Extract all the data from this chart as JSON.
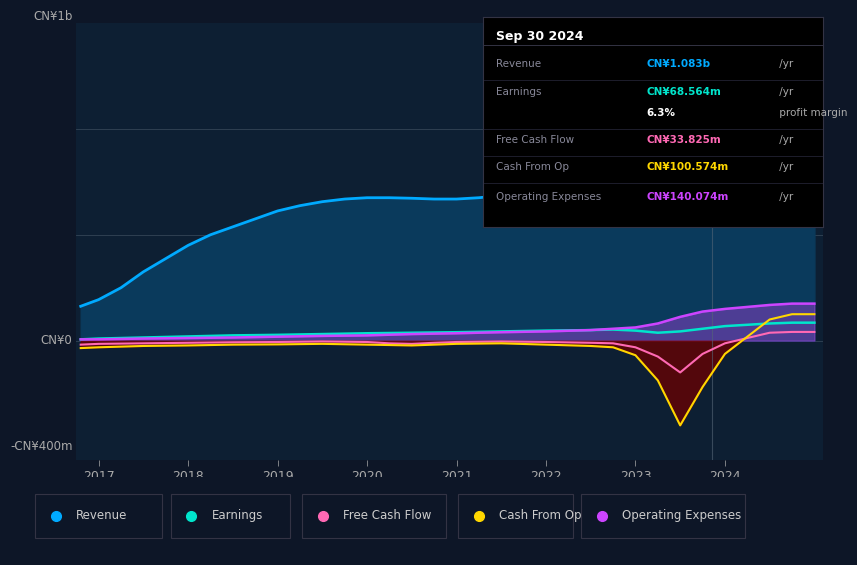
{
  "background_color": "#0d1627",
  "plot_bg_color": "#0d1f33",
  "ylabel_top": "CN¥1b",
  "ylabel_zero": "CN¥0",
  "ylabel_bottom": "-CN¥400m",
  "ylim": [
    -450,
    1200
  ],
  "xlabel_years": [
    "2017",
    "2018",
    "2019",
    "2020",
    "2021",
    "2022",
    "2023",
    "2024"
  ],
  "revenue_color": "#00aaff",
  "revenue_fill_color": "#0a3a5c",
  "earnings_color": "#00e5cc",
  "fcf_color": "#ff69b4",
  "cashop_color": "#ffd700",
  "opex_color": "#cc44ff",
  "legend_items": [
    {
      "label": "Revenue",
      "color": "#00aaff"
    },
    {
      "label": "Earnings",
      "color": "#00e5cc"
    },
    {
      "label": "Free Cash Flow",
      "color": "#ff69b4"
    },
    {
      "label": "Cash From Op",
      "color": "#ffd700"
    },
    {
      "label": "Operating Expenses",
      "color": "#cc44ff"
    }
  ],
  "infobox_date": "Sep 30 2024",
  "infobox_rows": [
    {
      "label": "Revenue",
      "value": "CN¥1.083b",
      "suffix": " /yr",
      "color": "#00aaff"
    },
    {
      "label": "Earnings",
      "value": "CN¥68.564m",
      "suffix": " /yr",
      "color": "#00e5cc"
    },
    {
      "label": "",
      "value": "6.3%",
      "suffix": " profit margin",
      "color": "#ffffff"
    },
    {
      "label": "Free Cash Flow",
      "value": "CN¥33.825m",
      "suffix": " /yr",
      "color": "#ff69b4"
    },
    {
      "label": "Cash From Op",
      "value": "CN¥100.574m",
      "suffix": " /yr",
      "color": "#ffd700"
    },
    {
      "label": "Operating Expenses",
      "value": "CN¥140.074m",
      "suffix": " /yr",
      "color": "#cc44ff"
    }
  ],
  "revenue_x": [
    2016.8,
    2017.0,
    2017.25,
    2017.5,
    2017.75,
    2018.0,
    2018.25,
    2018.5,
    2018.75,
    2019.0,
    2019.25,
    2019.5,
    2019.75,
    2020.0,
    2020.25,
    2020.5,
    2020.75,
    2021.0,
    2021.25,
    2021.5,
    2021.75,
    2022.0,
    2022.25,
    2022.5,
    2022.75,
    2023.0,
    2023.1,
    2023.25,
    2023.5,
    2023.75,
    2024.0,
    2024.25,
    2024.5,
    2024.75,
    2025.0
  ],
  "revenue_y": [
    130,
    155,
    200,
    260,
    310,
    360,
    400,
    430,
    460,
    490,
    510,
    525,
    535,
    540,
    540,
    538,
    535,
    535,
    540,
    548,
    555,
    565,
    570,
    575,
    578,
    565,
    540,
    510,
    570,
    700,
    880,
    1000,
    870,
    1083,
    1083
  ],
  "earnings_x": [
    2016.8,
    2017.0,
    2017.5,
    2018.0,
    2018.5,
    2019.0,
    2019.5,
    2020.0,
    2020.5,
    2021.0,
    2021.5,
    2022.0,
    2022.5,
    2022.75,
    2023.0,
    2023.25,
    2023.5,
    2023.75,
    2024.0,
    2024.5,
    2024.75,
    2025.0
  ],
  "earnings_y": [
    5,
    8,
    12,
    16,
    20,
    22,
    25,
    28,
    30,
    32,
    35,
    38,
    40,
    42,
    38,
    30,
    35,
    45,
    55,
    65,
    68,
    68
  ],
  "fcf_x": [
    2016.8,
    2017.0,
    2017.5,
    2018.0,
    2018.5,
    2019.0,
    2019.5,
    2020.0,
    2020.25,
    2020.5,
    2020.75,
    2021.0,
    2021.5,
    2022.0,
    2022.5,
    2022.75,
    2023.0,
    2023.25,
    2023.5,
    2023.75,
    2024.0,
    2024.5,
    2024.75,
    2025.0
  ],
  "fcf_y": [
    -15,
    -12,
    -10,
    -8,
    -6,
    -5,
    -3,
    -5,
    -10,
    -12,
    -8,
    -5,
    -3,
    -5,
    -8,
    -10,
    -25,
    -60,
    -120,
    -50,
    -10,
    30,
    33,
    33
  ],
  "cashop_x": [
    2016.8,
    2017.0,
    2017.5,
    2018.0,
    2018.5,
    2019.0,
    2019.5,
    2020.0,
    2020.5,
    2021.0,
    2021.5,
    2022.0,
    2022.5,
    2022.75,
    2023.0,
    2023.25,
    2023.5,
    2023.75,
    2024.0,
    2024.5,
    2024.75,
    2025.0
  ],
  "cashop_y": [
    -28,
    -25,
    -20,
    -18,
    -15,
    -14,
    -12,
    -15,
    -18,
    -12,
    -10,
    -15,
    -20,
    -25,
    -55,
    -150,
    -320,
    -175,
    -50,
    80,
    100,
    100
  ],
  "opex_x": [
    2016.8,
    2017.0,
    2017.5,
    2018.0,
    2018.5,
    2019.0,
    2019.5,
    2020.0,
    2020.5,
    2021.0,
    2021.5,
    2022.0,
    2022.5,
    2022.75,
    2023.0,
    2023.25,
    2023.5,
    2023.75,
    2024.0,
    2024.5,
    2024.75,
    2025.0
  ],
  "opex_y": [
    5,
    5,
    8,
    10,
    12,
    15,
    18,
    20,
    25,
    28,
    32,
    35,
    40,
    45,
    50,
    65,
    90,
    110,
    120,
    135,
    140,
    140
  ],
  "xlim": [
    2016.75,
    2025.1
  ],
  "vline_x": 2023.85
}
